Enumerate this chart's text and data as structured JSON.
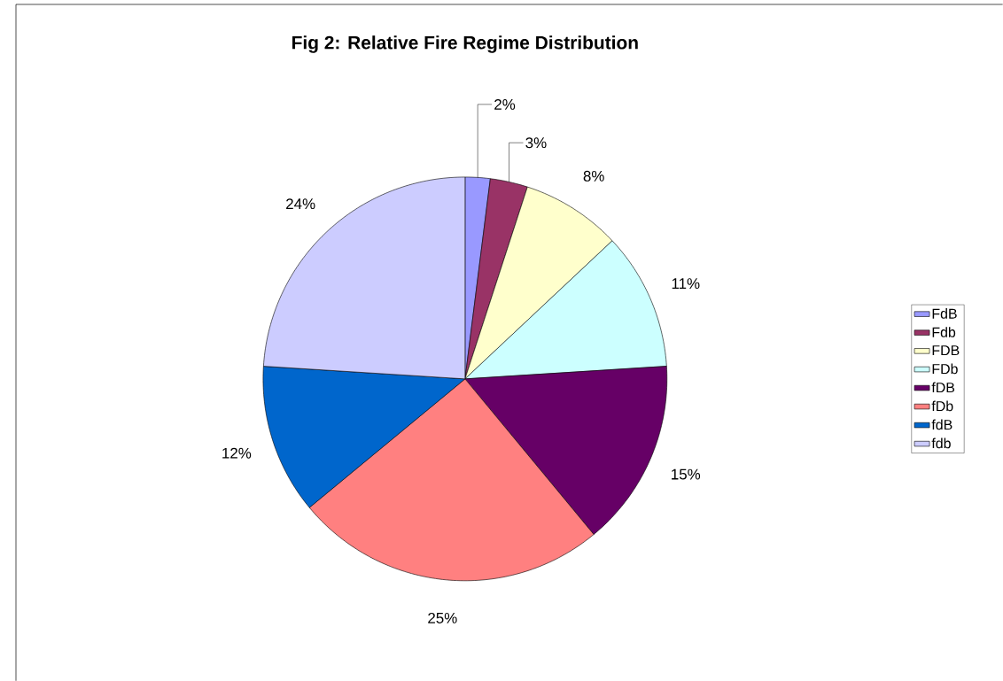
{
  "chart_data": {
    "type": "pie",
    "title": "Fig 2: Relative Fire Regime Distribution",
    "categories": [
      "FdB",
      "Fdb",
      "FDB",
      "FDb",
      "fDB",
      "fDb",
      "fdB",
      "fdb"
    ],
    "values": [
      2,
      3,
      8,
      11,
      15,
      25,
      12,
      24
    ],
    "colors": [
      "#9999ff",
      "#993366",
      "#ffffcc",
      "#ccffff",
      "#660066",
      "#ff8080",
      "#0066cc",
      "#ccccff"
    ],
    "value_labels": [
      "2%",
      "3%",
      "8%",
      "11%",
      "15%",
      "25%",
      "12%",
      "24%"
    ],
    "legend": "right"
  }
}
